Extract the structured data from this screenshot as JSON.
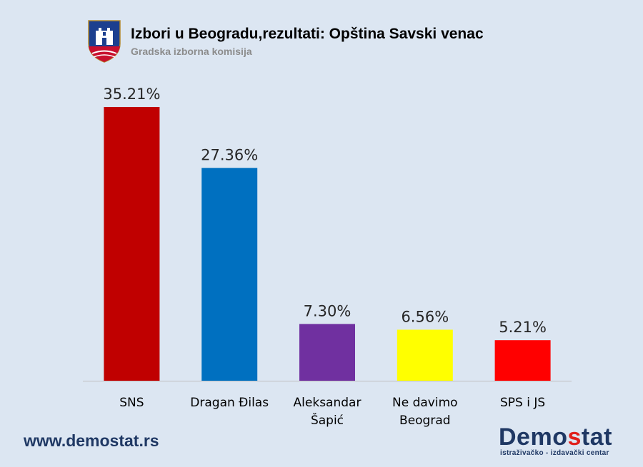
{
  "header": {
    "title": "Izbori u Beogradu,rezultati: Opština Savski venac",
    "subtitle": "Gradska izborna komisija",
    "emblem_icon": "belgrade-coat-of-arms-icon"
  },
  "footer": {
    "website": "www.demostat.rs",
    "brand_prefix": "Demo",
    "brand_accent": "s",
    "brand_suffix": "tat",
    "brand_tagline": "istraživačko - izdavački centar"
  },
  "chart_data": {
    "type": "bar",
    "categories": [
      [
        "SNS"
      ],
      [
        "Dragan Đilas"
      ],
      [
        "Aleksandar",
        "Šapić"
      ],
      [
        "Ne davimo",
        "Beograd"
      ],
      [
        "SPS i JS"
      ]
    ],
    "values": [
      35.21,
      27.36,
      7.3,
      6.56,
      5.21
    ],
    "data_labels": [
      "35.21%",
      "27.36%",
      "7.30%",
      "6.56%",
      "5.21%"
    ],
    "colors": [
      "#c00000",
      "#0070c0",
      "#7030a0",
      "#ffff00",
      "#ff0000"
    ],
    "ylim": [
      0,
      35.21
    ],
    "grid": false,
    "legend": "none"
  }
}
